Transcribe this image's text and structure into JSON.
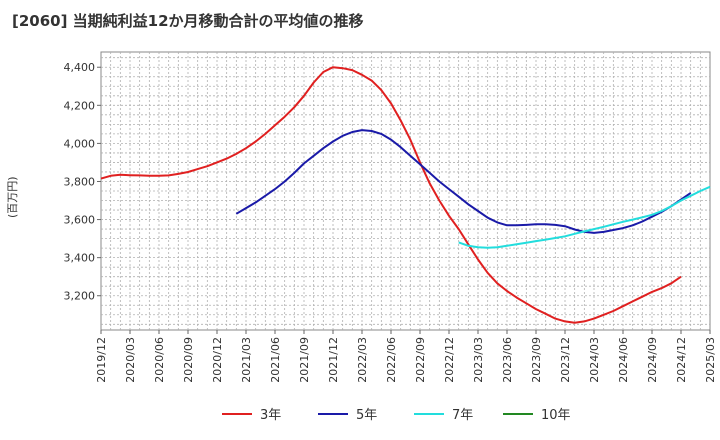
{
  "chart_data": {
    "type": "line",
    "title": "[2060]  当期純利益12か月移動合計の平均値の推移",
    "ylabel": "(百万円)",
    "ylim": [
      3020,
      4480
    ],
    "yticks": [
      3200,
      3400,
      3600,
      3800,
      4000,
      4200,
      4400
    ],
    "ytick_labels": [
      "3,200",
      "3,400",
      "3,600",
      "3,800",
      "4,000",
      "4,200",
      "4,400"
    ],
    "xlim": [
      "2019-12",
      "2025-03"
    ],
    "xtick_labels": [
      "2019/12",
      "2020/03",
      "2020/06",
      "2020/09",
      "2020/12",
      "2021/03",
      "2021/06",
      "2021/09",
      "2021/12",
      "2022/03",
      "2022/06",
      "2022/09",
      "2022/12",
      "2023/03",
      "2023/06",
      "2023/09",
      "2023/12",
      "2024/03",
      "2024/06",
      "2024/09",
      "2024/12",
      "2025/03"
    ],
    "grid": true,
    "legend_position": "bottom",
    "series": [
      {
        "name": "3年",
        "color": "#e02020",
        "points": [
          [
            "2019-12",
            3815
          ],
          [
            "2020-01",
            3830
          ],
          [
            "2020-02",
            3835
          ],
          [
            "2020-03",
            3833
          ],
          [
            "2020-04",
            3832
          ],
          [
            "2020-05",
            3830
          ],
          [
            "2020-06",
            3830
          ],
          [
            "2020-07",
            3832
          ],
          [
            "2020-08",
            3840
          ],
          [
            "2020-09",
            3850
          ],
          [
            "2020-10",
            3865
          ],
          [
            "2020-11",
            3880
          ],
          [
            "2020-12",
            3900
          ],
          [
            "2021-01",
            3920
          ],
          [
            "2021-02",
            3945
          ],
          [
            "2021-03",
            3975
          ],
          [
            "2021-04",
            4010
          ],
          [
            "2021-05",
            4050
          ],
          [
            "2021-06",
            4095
          ],
          [
            "2021-07",
            4140
          ],
          [
            "2021-08",
            4190
          ],
          [
            "2021-09",
            4250
          ],
          [
            "2021-10",
            4320
          ],
          [
            "2021-11",
            4375
          ],
          [
            "2021-12",
            4400
          ],
          [
            "2022-01",
            4395
          ],
          [
            "2022-02",
            4385
          ],
          [
            "2022-03",
            4360
          ],
          [
            "2022-04",
            4330
          ],
          [
            "2022-05",
            4280
          ],
          [
            "2022-06",
            4210
          ],
          [
            "2022-07",
            4120
          ],
          [
            "2022-08",
            4020
          ],
          [
            "2022-09",
            3900
          ],
          [
            "2022-10",
            3790
          ],
          [
            "2022-11",
            3700
          ],
          [
            "2022-12",
            3620
          ],
          [
            "2023-01",
            3550
          ],
          [
            "2023-02",
            3470
          ],
          [
            "2023-03",
            3390
          ],
          [
            "2023-04",
            3320
          ],
          [
            "2023-05",
            3265
          ],
          [
            "2023-06",
            3225
          ],
          [
            "2023-07",
            3190
          ],
          [
            "2023-08",
            3160
          ],
          [
            "2023-09",
            3130
          ],
          [
            "2023-10",
            3105
          ],
          [
            "2023-11",
            3080
          ],
          [
            "2023-12",
            3065
          ],
          [
            "2024-01",
            3058
          ],
          [
            "2024-02",
            3065
          ],
          [
            "2024-03",
            3080
          ],
          [
            "2024-04",
            3100
          ],
          [
            "2024-05",
            3120
          ],
          [
            "2024-06",
            3145
          ],
          [
            "2024-07",
            3170
          ],
          [
            "2024-08",
            3195
          ],
          [
            "2024-09",
            3220
          ],
          [
            "2024-10",
            3240
          ],
          [
            "2024-11",
            3265
          ],
          [
            "2024-12",
            3300
          ]
        ]
      },
      {
        "name": "5年",
        "color": "#1a1aa8",
        "points": [
          [
            "2021-02",
            3630
          ],
          [
            "2021-03",
            3660
          ],
          [
            "2021-04",
            3690
          ],
          [
            "2021-05",
            3725
          ],
          [
            "2021-06",
            3760
          ],
          [
            "2021-07",
            3800
          ],
          [
            "2021-08",
            3845
          ],
          [
            "2021-09",
            3895
          ],
          [
            "2021-10",
            3935
          ],
          [
            "2021-11",
            3975
          ],
          [
            "2021-12",
            4010
          ],
          [
            "2022-01",
            4040
          ],
          [
            "2022-02",
            4060
          ],
          [
            "2022-03",
            4070
          ],
          [
            "2022-04",
            4065
          ],
          [
            "2022-05",
            4050
          ],
          [
            "2022-06",
            4020
          ],
          [
            "2022-07",
            3980
          ],
          [
            "2022-08",
            3935
          ],
          [
            "2022-09",
            3890
          ],
          [
            "2022-10",
            3845
          ],
          [
            "2022-11",
            3800
          ],
          [
            "2022-12",
            3760
          ],
          [
            "2023-01",
            3720
          ],
          [
            "2023-02",
            3680
          ],
          [
            "2023-03",
            3645
          ],
          [
            "2023-04",
            3610
          ],
          [
            "2023-05",
            3585
          ],
          [
            "2023-06",
            3570
          ],
          [
            "2023-07",
            3570
          ],
          [
            "2023-08",
            3572
          ],
          [
            "2023-09",
            3575
          ],
          [
            "2023-10",
            3575
          ],
          [
            "2023-11",
            3572
          ],
          [
            "2023-12",
            3565
          ],
          [
            "2024-01",
            3548
          ],
          [
            "2024-02",
            3535
          ],
          [
            "2024-03",
            3530
          ],
          [
            "2024-04",
            3535
          ],
          [
            "2024-05",
            3545
          ],
          [
            "2024-06",
            3555
          ],
          [
            "2024-07",
            3570
          ],
          [
            "2024-08",
            3590
          ],
          [
            "2024-09",
            3615
          ],
          [
            "2024-10",
            3640
          ],
          [
            "2024-11",
            3670
          ],
          [
            "2024-12",
            3705
          ],
          [
            "2025-01",
            3740
          ]
        ]
      },
      {
        "name": "7年",
        "color": "#22dddd",
        "points": [
          [
            "2023-01",
            3480
          ],
          [
            "2023-02",
            3462
          ],
          [
            "2023-03",
            3455
          ],
          [
            "2023-04",
            3452
          ],
          [
            "2023-05",
            3455
          ],
          [
            "2023-06",
            3462
          ],
          [
            "2023-07",
            3470
          ],
          [
            "2023-08",
            3478
          ],
          [
            "2023-09",
            3487
          ],
          [
            "2023-10",
            3495
          ],
          [
            "2023-11",
            3503
          ],
          [
            "2023-12",
            3512
          ],
          [
            "2024-01",
            3525
          ],
          [
            "2024-02",
            3538
          ],
          [
            "2024-03",
            3550
          ],
          [
            "2024-04",
            3562
          ],
          [
            "2024-05",
            3575
          ],
          [
            "2024-06",
            3588
          ],
          [
            "2024-07",
            3600
          ],
          [
            "2024-08",
            3612
          ],
          [
            "2024-09",
            3625
          ],
          [
            "2024-10",
            3645
          ],
          [
            "2024-11",
            3670
          ],
          [
            "2024-12",
            3700
          ],
          [
            "2025-01",
            3725
          ],
          [
            "2025-02",
            3750
          ],
          [
            "2025-03",
            3772
          ]
        ]
      },
      {
        "name": "10年",
        "color": "#228822",
        "points": []
      }
    ]
  }
}
